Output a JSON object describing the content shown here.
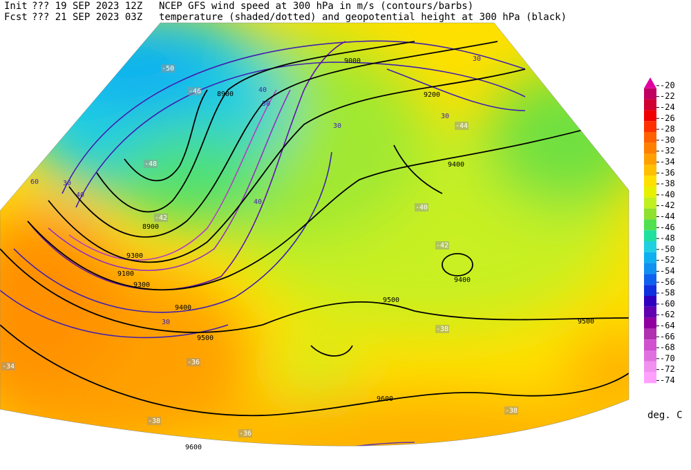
{
  "header": {
    "init_label": "Init",
    "init": "??? 19 SEP 2023 12Z",
    "fcst_label": "Fcst",
    "fcst": "??? 21 SEP 2023 03Z",
    "title_line1": "NCEP GFS wind speed at 300 hPa in m/s (contours/barbs)",
    "title_line2": "temperature (shaded/dotted) and geopotential height at 300 hPa (black)"
  },
  "colorbar": {
    "values": [
      -20,
      -22,
      -24,
      -26,
      -28,
      -30,
      -32,
      -34,
      -36,
      -38,
      -40,
      -42,
      -44,
      -46,
      -48,
      -50,
      -52,
      -54,
      -56,
      -58,
      -60,
      -62,
      -64,
      -66,
      -68,
      -70,
      -72,
      -74
    ],
    "colors": [
      "#e000a0",
      "#c00060",
      "#d00030",
      "#f00000",
      "#ff3000",
      "#ff6000",
      "#ff8000",
      "#ffa000",
      "#ffc000",
      "#ffe000",
      "#e6f000",
      "#c0f020",
      "#90e030",
      "#50e050",
      "#20e0a0",
      "#20d0e0",
      "#10b0f0",
      "#1090f0",
      "#1060f0",
      "#1030e0",
      "#3000c0",
      "#6000b0",
      "#9000a0",
      "#b030b0",
      "#d050d0",
      "#e070e0",
      "#f090f0",
      "#ffa0ff"
    ],
    "units": "deg. C"
  },
  "map_labels": [
    9600,
    9600,
    9500,
    9500,
    9500,
    9400,
    9400,
    9400,
    9300,
    9300,
    9200,
    9100,
    9000,
    8900,
    8900,
    -36,
    -36,
    -38,
    -38,
    -38,
    -40,
    -42,
    -42,
    -44,
    -46,
    -48,
    -50,
    -34,
    30,
    40,
    60,
    30,
    40,
    50,
    30,
    40,
    30,
    30
  ]
}
